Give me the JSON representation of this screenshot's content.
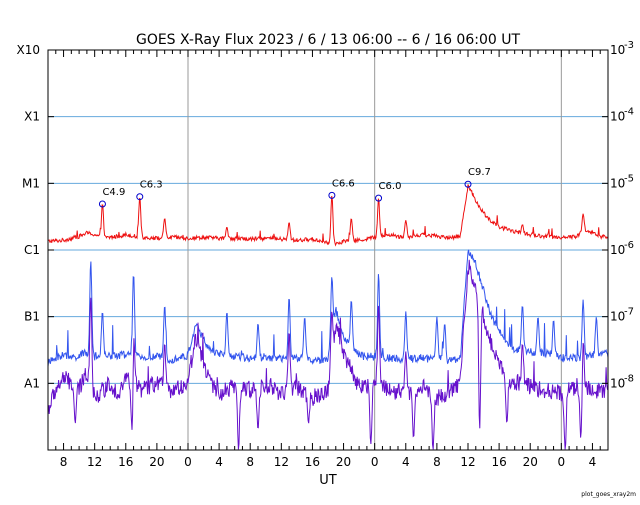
{
  "chart_data": {
    "type": "line",
    "title": "GOES X-Ray Flux   2023  /  6  /  13    06:00 --   6  /  16    06:00    UT",
    "xlabel": "UT",
    "ylabel": "",
    "x_ticks": [
      "8",
      "12",
      "16",
      "20",
      "0",
      "4",
      "8",
      "12",
      "16",
      "20",
      "0",
      "4",
      "8",
      "12",
      "16",
      "20",
      "0",
      "4"
    ],
    "x_tick_hours": [
      2,
      6,
      10,
      14,
      18,
      22,
      26,
      30,
      34,
      38,
      42,
      46,
      50,
      54,
      58,
      62,
      66,
      70
    ],
    "x_range_hours": [
      0,
      72
    ],
    "day_boundaries_hours": [
      18,
      42,
      66
    ],
    "y_scale": "log",
    "ylim": [
      1e-09,
      0.001
    ],
    "class_labels": [
      {
        "label": "X10",
        "value": 0.001
      },
      {
        "label": "X1",
        "value": 0.0001
      },
      {
        "label": "M1",
        "value": 1e-05
      },
      {
        "label": "C1",
        "value": 1e-06
      },
      {
        "label": "B1",
        "value": 1e-07
      },
      {
        "label": "A1",
        "value": 1e-08
      }
    ],
    "right_ticks": [
      {
        "base": "10",
        "exp": "-3",
        "value": 0.001
      },
      {
        "base": "10",
        "exp": "-4",
        "value": 0.0001
      },
      {
        "base": "10",
        "exp": "-5",
        "value": 1e-05
      },
      {
        "base": "10",
        "exp": "-6",
        "value": 1e-06
      },
      {
        "base": "10",
        "exp": "-7",
        "value": 1e-07
      },
      {
        "base": "10",
        "exp": "-8",
        "value": 1e-08
      }
    ],
    "grid": true,
    "series": [
      {
        "color": "#ee1111",
        "points": [
          [
            0,
            1.35e-06
          ],
          [
            2,
            1.4e-06
          ],
          [
            4,
            1.6e-06
          ],
          [
            5,
            1.8e-06
          ],
          [
            6,
            1.7e-06
          ],
          [
            7,
            1.5e-06
          ],
          [
            9,
            1.6e-06
          ],
          [
            10,
            1.7e-06
          ],
          [
            12,
            1.55e-06
          ],
          [
            14,
            1.5e-06
          ],
          [
            16,
            1.55e-06
          ],
          [
            18,
            1.5e-06
          ],
          [
            20,
            1.55e-06
          ],
          [
            22,
            1.5e-06
          ],
          [
            24,
            1.5e-06
          ],
          [
            26,
            1.45e-06
          ],
          [
            28,
            1.5e-06
          ],
          [
            30,
            1.45e-06
          ],
          [
            32,
            1.4e-06
          ],
          [
            34,
            1.45e-06
          ],
          [
            36,
            1.3e-06
          ],
          [
            37,
            1.25e-06
          ],
          [
            38,
            1.35e-06
          ],
          [
            40,
            1.4e-06
          ],
          [
            42,
            1.55e-06
          ],
          [
            44,
            1.7e-06
          ],
          [
            45,
            1.6e-06
          ],
          [
            46,
            1.55e-06
          ],
          [
            48,
            1.7e-06
          ],
          [
            50,
            1.6e-06
          ],
          [
            52,
            1.55e-06
          ],
          [
            53,
            1.6e-06
          ],
          [
            54,
            9.4e-06
          ],
          [
            54.5,
            7.2e-06
          ],
          [
            55,
            5.5e-06
          ],
          [
            56,
            3.6e-06
          ],
          [
            57,
            2.7e-06
          ],
          [
            58,
            2.2e-06
          ],
          [
            60,
            1.9e-06
          ],
          [
            62,
            1.7e-06
          ],
          [
            64,
            1.6e-06
          ],
          [
            66,
            1.55e-06
          ],
          [
            68,
            1.6e-06
          ],
          [
            69,
            2e-06
          ],
          [
            70,
            1.8e-06
          ],
          [
            71,
            1.6e-06
          ],
          [
            72,
            1.55e-06
          ]
        ],
        "spikes": [
          [
            7,
            5e-06
          ],
          [
            11.8,
            6.3e-06
          ],
          [
            15,
            3e-06
          ],
          [
            23,
            2.2e-06
          ],
          [
            31,
            2.6e-06
          ],
          [
            36.5,
            6.6e-06
          ],
          [
            39,
            3e-06
          ],
          [
            42.5,
            6e-06
          ],
          [
            46,
            2.8e-06
          ],
          [
            61,
            2.4e-06
          ],
          [
            68.8,
            3.5e-06
          ]
        ]
      },
      {
        "color": "#3355ee",
        "points": [
          [
            0,
            2e-08
          ],
          [
            1,
            2.4e-08
          ],
          [
            2,
            2.7e-08
          ],
          [
            3,
            2.4e-08
          ],
          [
            4,
            2.6e-08
          ],
          [
            5,
            2.9e-08
          ],
          [
            6,
            2.5e-08
          ],
          [
            8,
            2.6e-08
          ],
          [
            10,
            2.7e-08
          ],
          [
            12,
            2.4e-08
          ],
          [
            14,
            2.5e-08
          ],
          [
            16,
            2.3e-08
          ],
          [
            18,
            2.6e-08
          ],
          [
            19,
            8e-08
          ],
          [
            20,
            4.5e-08
          ],
          [
            21,
            3e-08
          ],
          [
            22,
            2.7e-08
          ],
          [
            24,
            2.5e-08
          ],
          [
            26,
            2.4e-08
          ],
          [
            28,
            2.5e-08
          ],
          [
            30,
            2.3e-08
          ],
          [
            32,
            2.4e-08
          ],
          [
            34,
            2.2e-08
          ],
          [
            36,
            2.3e-08
          ],
          [
            37,
            1.3e-07
          ],
          [
            38,
            5e-08
          ],
          [
            39,
            3.5e-08
          ],
          [
            40,
            2.6e-08
          ],
          [
            42,
            2.5e-08
          ],
          [
            44,
            2.4e-08
          ],
          [
            46,
            2.3e-08
          ],
          [
            48,
            2.4e-08
          ],
          [
            50,
            2.3e-08
          ],
          [
            52,
            2.2e-08
          ],
          [
            53,
            2.4e-08
          ],
          [
            54,
            1e-06
          ],
          [
            55,
            6e-07
          ],
          [
            56,
            2.5e-07
          ],
          [
            57,
            1e-07
          ],
          [
            58,
            6e-08
          ],
          [
            59,
            4e-08
          ],
          [
            60,
            3.2e-08
          ],
          [
            62,
            3e-08
          ],
          [
            64,
            2.8e-08
          ],
          [
            66,
            2.5e-08
          ],
          [
            68,
            2.4e-08
          ],
          [
            70,
            2.6e-08
          ],
          [
            72,
            2.8e-08
          ]
        ],
        "spikes": [
          [
            5.5,
            7e-07
          ],
          [
            7,
            1.2e-07
          ],
          [
            11,
            4.5e-07
          ],
          [
            15,
            1.5e-07
          ],
          [
            23,
            1.2e-07
          ],
          [
            27,
            8e-08
          ],
          [
            31,
            2e-07
          ],
          [
            33,
            1e-07
          ],
          [
            36.5,
            4e-07
          ],
          [
            39,
            1.8e-07
          ],
          [
            42.5,
            4.5e-07
          ],
          [
            46,
            1.2e-07
          ],
          [
            50,
            1e-07
          ],
          [
            51,
            8e-08
          ],
          [
            61,
            1.5e-07
          ],
          [
            63,
            1e-07
          ],
          [
            65,
            9e-08
          ],
          [
            68.8,
            1.8e-07
          ],
          [
            70.5,
            1e-07
          ]
        ]
      },
      {
        "color": "#6611cc",
        "points": [
          [
            0,
            4e-09
          ],
          [
            1,
            8e-09
          ],
          [
            2,
            1.2e-08
          ],
          [
            3,
            1e-08
          ],
          [
            4,
            8e-09
          ],
          [
            5,
            1.5e-08
          ],
          [
            6,
            6e-09
          ],
          [
            8,
            1e-08
          ],
          [
            9,
            7e-09
          ],
          [
            10,
            1.2e-08
          ],
          [
            12,
            8e-09
          ],
          [
            14,
            1e-08
          ],
          [
            16,
            7e-09
          ],
          [
            18,
            1.1e-08
          ],
          [
            19,
            5e-08
          ],
          [
            20,
            2e-08
          ],
          [
            21,
            1e-08
          ],
          [
            22,
            7e-09
          ],
          [
            24,
            9e-09
          ],
          [
            26,
            8e-09
          ],
          [
            28,
            1e-08
          ],
          [
            30,
            7e-09
          ],
          [
            32,
            9e-09
          ],
          [
            34,
            6e-09
          ],
          [
            36,
            8e-09
          ],
          [
            37,
            8e-08
          ],
          [
            38,
            3e-08
          ],
          [
            39,
            1.5e-08
          ],
          [
            40,
            9e-09
          ],
          [
            42,
            1e-08
          ],
          [
            44,
            8e-09
          ],
          [
            46,
            7e-09
          ],
          [
            48,
            9e-09
          ],
          [
            50,
            6e-09
          ],
          [
            52,
            8e-09
          ],
          [
            53,
            1e-08
          ],
          [
            54,
            6e-07
          ],
          [
            55,
            3e-07
          ],
          [
            56,
            1e-07
          ],
          [
            57,
            4e-08
          ],
          [
            58,
            2e-08
          ],
          [
            59,
            1.2e-08
          ],
          [
            60,
            1e-08
          ],
          [
            62,
            9e-09
          ],
          [
            64,
            8e-09
          ],
          [
            66,
            7e-09
          ],
          [
            68,
            9e-09
          ],
          [
            70,
            8e-09
          ],
          [
            72,
            7e-09
          ]
        ],
        "spikes": [
          [
            5.5,
            2e-07
          ],
          [
            11,
            1e-07
          ],
          [
            15,
            4e-08
          ],
          [
            31,
            6e-08
          ],
          [
            36.5,
            1.2e-07
          ],
          [
            42.5,
            1.5e-07
          ],
          [
            46,
            3e-08
          ],
          [
            61,
            4e-08
          ],
          [
            68.8,
            5e-08
          ]
        ],
        "dips": [
          [
            3.5,
            2.5e-09
          ],
          [
            10.8,
            2e-09
          ],
          [
            24.5,
            1e-09
          ],
          [
            27,
            2e-09
          ],
          [
            33.5,
            2.5e-09
          ],
          [
            41.5,
            1.2e-09
          ],
          [
            47,
            1.5e-09
          ],
          [
            49.5,
            1e-09
          ],
          [
            55.5,
            2e-09
          ],
          [
            59,
            2.5e-09
          ],
          [
            66.5,
            1e-09
          ],
          [
            68.5,
            1.5e-09
          ]
        ]
      }
    ],
    "annotations": [
      {
        "label": "C4.9",
        "x": 7.0,
        "y": 4.9e-06
      },
      {
        "label": "C6.3",
        "x": 11.8,
        "y": 6.3e-06
      },
      {
        "label": "C6.6",
        "x": 36.5,
        "y": 6.6e-06
      },
      {
        "label": "C6.0",
        "x": 42.5,
        "y": 6e-06
      },
      {
        "label": "C9.7",
        "x": 54.0,
        "y": 9.7e-06
      }
    ],
    "credit": "plot_goes_xray2m"
  }
}
